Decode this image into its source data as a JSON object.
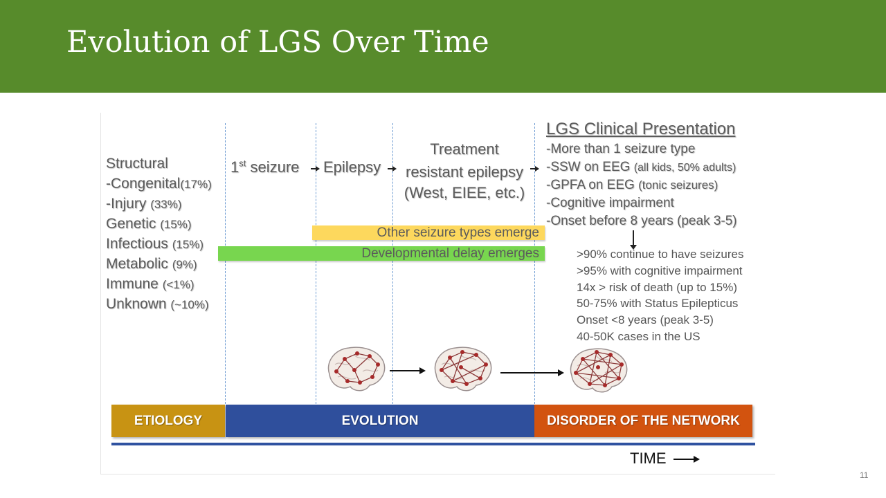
{
  "slide": {
    "title": "Evolution of LGS Over Time",
    "page_number": "11"
  },
  "etiology": {
    "lines": [
      {
        "main": "Structural",
        "pct": ""
      },
      {
        "main": "-Congenital",
        "pct": "(17%)"
      },
      {
        "main": "-Injury ",
        "pct": "(33%)"
      },
      {
        "main": "Genetic ",
        "pct": "(15%)"
      },
      {
        "main": "Infectious ",
        "pct": "(15%)"
      },
      {
        "main": "Metabolic ",
        "pct": "(9%)"
      },
      {
        "main": "Immune ",
        "pct": "(<1%)"
      },
      {
        "main": "Unknown ",
        "pct": "(~10%)"
      }
    ]
  },
  "stages": {
    "first_seizure_num": "1",
    "first_seizure_sup": "st",
    "first_seizure_rest": " seizure",
    "epilepsy": "Epilepsy",
    "treatment_line1": "Treatment",
    "treatment_line2": "resistant epilepsy",
    "treatment_line3": "(West, EIEE, etc.)"
  },
  "bands": {
    "other_seizures": "Other seizure types emerge",
    "developmental_delay": "Developmental delay emerges",
    "other_color": "#fdd85d",
    "delay_color": "#78d64f"
  },
  "lgs": {
    "title": "LGS Clinical Presentation",
    "items": [
      {
        "main": "-More than 1 seizure type",
        "small": ""
      },
      {
        "main": "-SSW on EEG ",
        "small": "(all kids, 50% adults)"
      },
      {
        "main": "-GPFA on EEG ",
        "small": "(tonic seizures)"
      },
      {
        "main": "-Cognitive impairment",
        "small": ""
      },
      {
        "main": "-Onset before 8 years (peak 3-5)",
        "small": ""
      }
    ]
  },
  "stats": [
    ">90% continue to have seizures",
    ">95% with cognitive impairment",
    "14x > risk of death (up to 15%)",
    "50-75% with Status Epilepticus",
    "Onset <8 years (peak 3-5)",
    "40-50K cases in the US"
  ],
  "phases": {
    "etiology": {
      "label": "ETIOLOGY",
      "color": "#c89313"
    },
    "evolution": {
      "label": "EVOLUTION",
      "color": "#2f4f9c"
    },
    "disorder": {
      "label": "DISORDER OF THE NETWORK",
      "color": "#d2530f"
    }
  },
  "timeline": {
    "label": "TIME",
    "color": "#2f52a0"
  },
  "icons": [
    "brain-network-icon",
    "arrow-right-icon",
    "arrow-down-icon"
  ]
}
